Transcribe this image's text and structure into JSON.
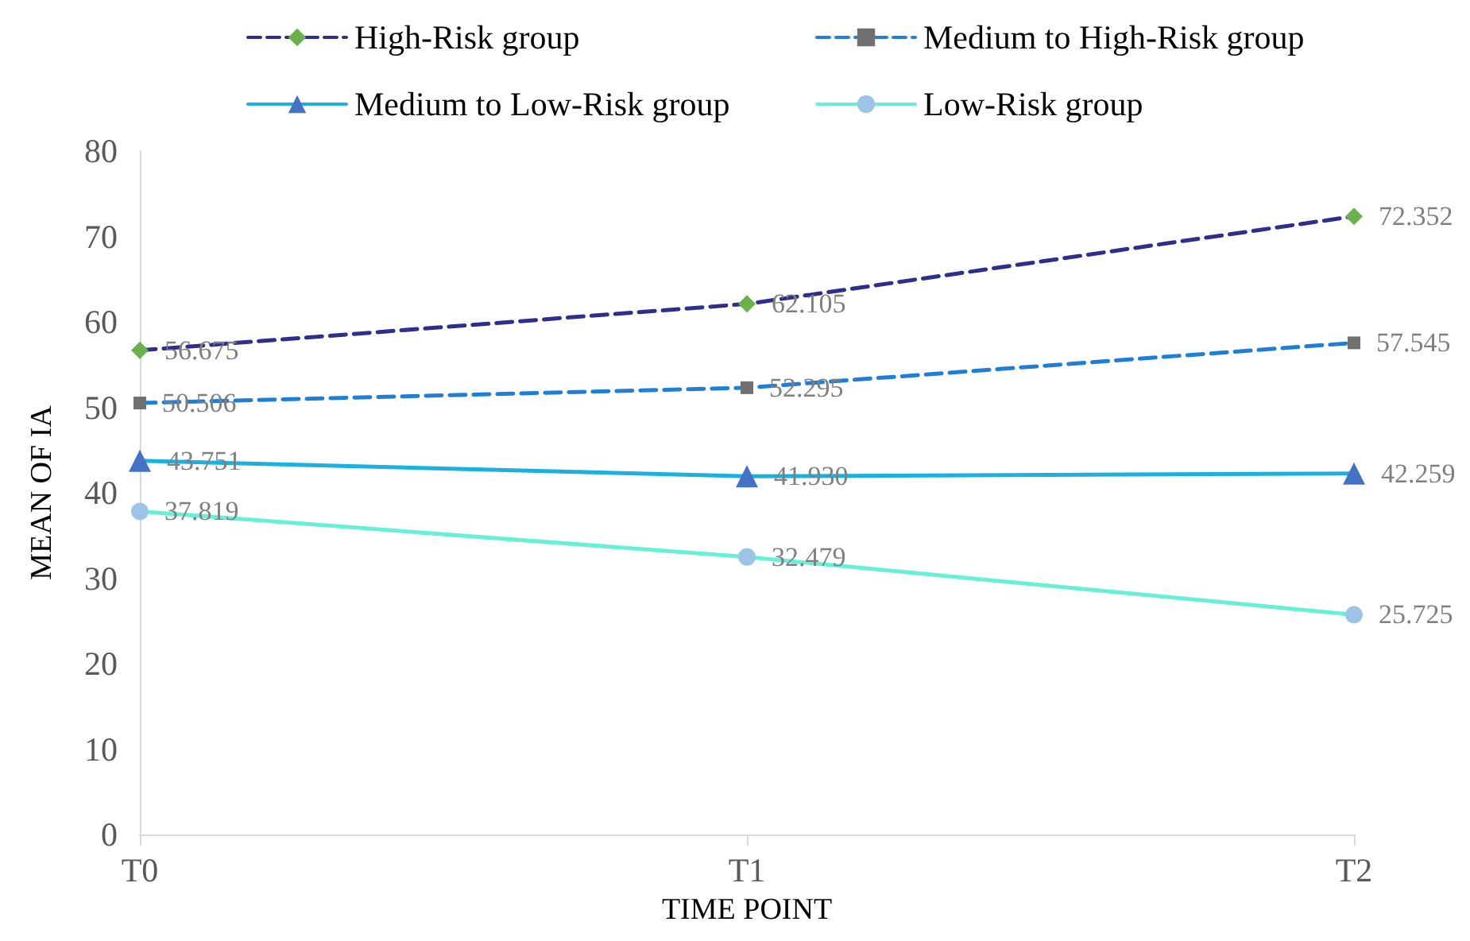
{
  "chart_data": {
    "type": "line",
    "xlabel": "TIME POINT",
    "ylabel": "MEAN OF IA",
    "categories": [
      "T0",
      "T1",
      "T2"
    ],
    "ylim": [
      0,
      80
    ],
    "yticks": [
      0,
      10,
      20,
      30,
      40,
      50,
      60,
      70,
      80
    ],
    "grid": false,
    "legend": "top",
    "series": [
      {
        "name": "High-Risk group",
        "color": "#2e2e8c",
        "colors": [
          "#6ab04c",
          "#6ab04c",
          "#6ab04c"
        ],
        "marker": "diamond",
        "line_style": "dashed",
        "values": [
          56.675,
          62.105,
          72.352
        ],
        "value_labels": [
          "56.675",
          "62.105",
          "72.352"
        ]
      },
      {
        "name": "Medium to High-Risk group",
        "color": "#1f7fd6",
        "colors": [
          "#707070",
          "#707070",
          "#707070"
        ],
        "marker": "square",
        "line_style": "dashed",
        "values": [
          50.506,
          52.295,
          57.545
        ],
        "value_labels": [
          "50.506",
          "52.295",
          "57.545"
        ]
      },
      {
        "name": "Medium to Low-Risk group",
        "color": "#1ab0e0",
        "colors": [
          "#4472c4",
          "#4472c4",
          "#4472c4"
        ],
        "marker": "triangle",
        "line_style": "solid",
        "values": [
          43.751,
          41.93,
          42.259
        ],
        "value_labels": [
          "43.751",
          "41.930",
          "42.259"
        ]
      },
      {
        "name": "Low-Risk group",
        "color": "#66f0d8",
        "colors": [
          "#9dc3e6",
          "#9dc3e6",
          "#9dc3e6"
        ],
        "marker": "circle",
        "line_style": "solid",
        "values": [
          37.819,
          32.479,
          25.725
        ],
        "value_labels": [
          "37.819",
          "32.479",
          "25.725"
        ]
      }
    ]
  }
}
